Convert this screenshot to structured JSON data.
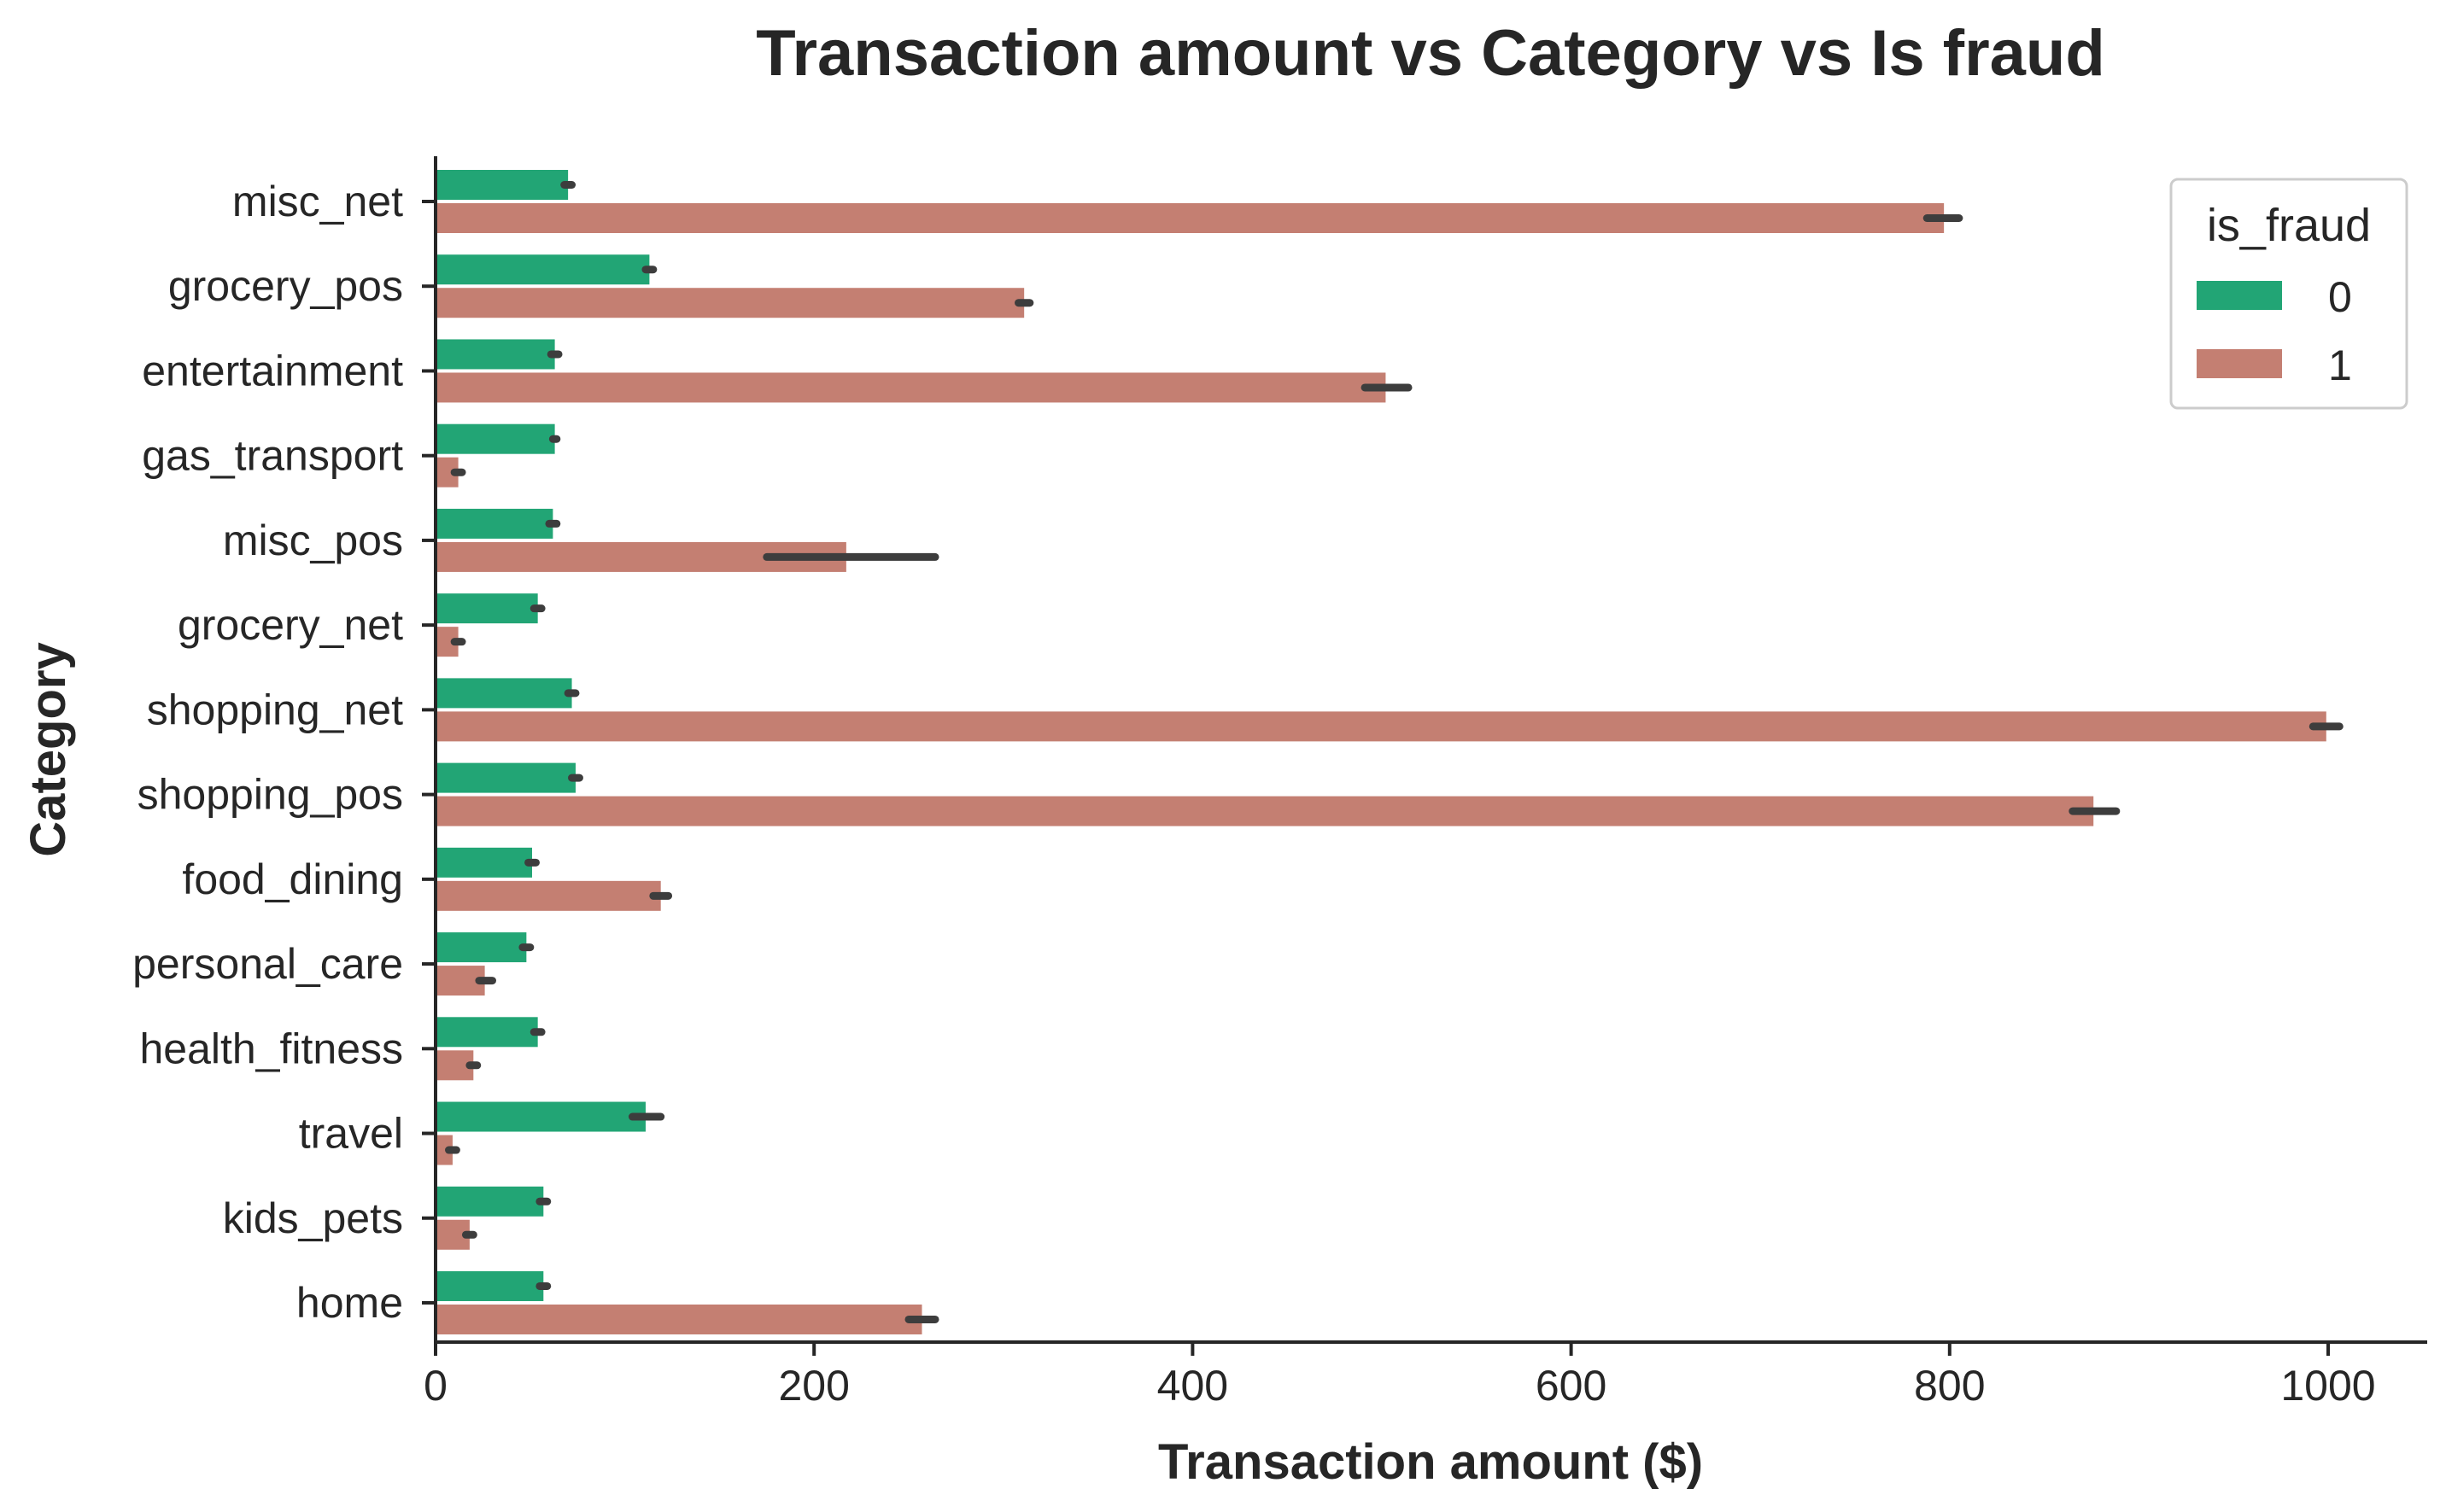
{
  "chart_data": {
    "type": "bar",
    "orientation": "horizontal",
    "title": "Transaction amount vs Category vs Is fraud",
    "xlabel": "Transaction amount ($)",
    "ylabel": "Category",
    "xlim": [
      0,
      1050
    ],
    "xticks": [
      0,
      200,
      400,
      600,
      800,
      1000
    ],
    "grid": false,
    "categories": [
      "misc_net",
      "grocery_pos",
      "entertainment",
      "gas_transport",
      "misc_pos",
      "grocery_net",
      "shopping_net",
      "shopping_pos",
      "food_dining",
      "personal_care",
      "health_fitness",
      "travel",
      "kids_pets",
      "home"
    ],
    "legend": {
      "title": "is_fraud",
      "position": "top-right"
    },
    "series": [
      {
        "name": "0",
        "color": "#22a575",
        "values": [
          70,
          113,
          63,
          63,
          62,
          54,
          72,
          74,
          51,
          48,
          54,
          111,
          57,
          57
        ],
        "ci": [
          [
            68,
            72
          ],
          [
            111,
            115
          ],
          [
            61,
            65
          ],
          [
            62,
            64
          ],
          [
            60,
            64
          ],
          [
            52,
            56
          ],
          [
            70,
            74
          ],
          [
            72,
            76
          ],
          [
            49,
            53
          ],
          [
            46,
            50
          ],
          [
            52,
            56
          ],
          [
            104,
            119
          ],
          [
            55,
            59
          ],
          [
            55,
            59
          ]
        ]
      },
      {
        "name": "1",
        "color": "#c47f72",
        "values": [
          797,
          311,
          502,
          12,
          217,
          12,
          999,
          876,
          119,
          26,
          20,
          9,
          18,
          257
        ],
        "ci": [
          [
            788,
            805
          ],
          [
            308,
            314
          ],
          [
            491,
            514
          ],
          [
            10,
            14
          ],
          [
            175,
            264
          ],
          [
            10,
            14
          ],
          [
            992,
            1006
          ],
          [
            865,
            888
          ],
          [
            115,
            123
          ],
          [
            23,
            30
          ],
          [
            18,
            22
          ],
          [
            7,
            11
          ],
          [
            16,
            20
          ],
          [
            250,
            264
          ]
        ]
      }
    ]
  }
}
